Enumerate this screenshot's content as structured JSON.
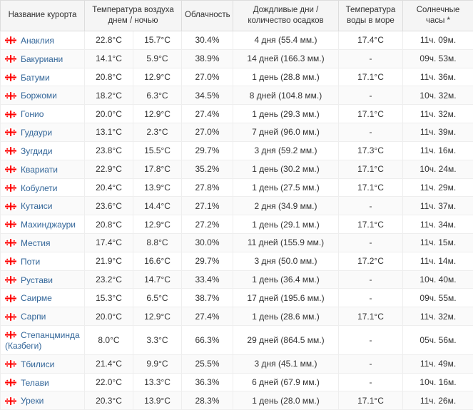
{
  "headers": {
    "name": "Название курорта",
    "temp": "Температура воздуха днем / ночью",
    "cloud": "Облачность",
    "rain": "Дождливые дни / количество осадков",
    "sea": "Температура воды в море",
    "sun": "Солнечные часы *"
  },
  "flag": {
    "bg": "#ffffff",
    "cross": "#ff0000"
  },
  "link_color": "#336699",
  "rows": [
    {
      "name": "Анаклия",
      "day": "22.8°C",
      "night": "15.7°C",
      "cloud": "30.4%",
      "rain": "4 дня (55.4 мм.)",
      "sea": "17.4°C",
      "sun": "11ч. 09м."
    },
    {
      "name": "Бакуриани",
      "day": "14.1°C",
      "night": "5.9°C",
      "cloud": "38.9%",
      "rain": "14 дней (166.3 мм.)",
      "sea": "-",
      "sun": "09ч. 53м."
    },
    {
      "name": "Батуми",
      "day": "20.8°C",
      "night": "12.9°C",
      "cloud": "27.0%",
      "rain": "1 день (28.8 мм.)",
      "sea": "17.1°C",
      "sun": "11ч. 36м."
    },
    {
      "name": "Боржоми",
      "day": "18.2°C",
      "night": "6.3°C",
      "cloud": "34.5%",
      "rain": "8 дней (104.8 мм.)",
      "sea": "-",
      "sun": "10ч. 32м."
    },
    {
      "name": "Гонио",
      "day": "20.0°C",
      "night": "12.9°C",
      "cloud": "27.4%",
      "rain": "1 день (29.3 мм.)",
      "sea": "17.1°C",
      "sun": "11ч. 32м."
    },
    {
      "name": "Гудаури",
      "day": "13.1°C",
      "night": "2.3°C",
      "cloud": "27.0%",
      "rain": "7 дней (96.0 мм.)",
      "sea": "-",
      "sun": "11ч. 39м."
    },
    {
      "name": "Зугдиди",
      "day": "23.8°C",
      "night": "15.5°C",
      "cloud": "29.7%",
      "rain": "3 дня (59.2 мм.)",
      "sea": "17.3°C",
      "sun": "11ч. 16м."
    },
    {
      "name": "Квариати",
      "day": "22.9°C",
      "night": "17.8°C",
      "cloud": "35.2%",
      "rain": "1 день (30.2 мм.)",
      "sea": "17.1°C",
      "sun": "10ч. 24м."
    },
    {
      "name": "Кобулети",
      "day": "20.4°C",
      "night": "13.9°C",
      "cloud": "27.8%",
      "rain": "1 день (27.5 мм.)",
      "sea": "17.1°C",
      "sun": "11ч. 29м."
    },
    {
      "name": "Кутаиси",
      "day": "23.6°C",
      "night": "14.4°C",
      "cloud": "27.1%",
      "rain": "2 дня (34.9 мм.)",
      "sea": "-",
      "sun": "11ч. 37м."
    },
    {
      "name": "Махинджаури",
      "day": "20.8°C",
      "night": "12.9°C",
      "cloud": "27.2%",
      "rain": "1 день (29.1 мм.)",
      "sea": "17.1°C",
      "sun": "11ч. 34м."
    },
    {
      "name": "Местия",
      "day": "17.4°C",
      "night": "8.8°C",
      "cloud": "30.0%",
      "rain": "11 дней (155.9 мм.)",
      "sea": "-",
      "sun": "11ч. 15м."
    },
    {
      "name": "Поти",
      "day": "21.9°C",
      "night": "16.6°C",
      "cloud": "29.7%",
      "rain": "3 дня (50.0 мм.)",
      "sea": "17.2°C",
      "sun": "11ч. 14м."
    },
    {
      "name": "Рустави",
      "day": "23.2°C",
      "night": "14.7°C",
      "cloud": "33.4%",
      "rain": "1 день (36.4 мм.)",
      "sea": "-",
      "sun": "10ч. 40м."
    },
    {
      "name": "Саирме",
      "day": "15.3°C",
      "night": "6.5°C",
      "cloud": "38.7%",
      "rain": "17 дней (195.6 мм.)",
      "sea": "-",
      "sun": "09ч. 55м."
    },
    {
      "name": "Сарпи",
      "day": "20.0°C",
      "night": "12.9°C",
      "cloud": "27.4%",
      "rain": "1 день (28.6 мм.)",
      "sea": "17.1°C",
      "sun": "11ч. 32м."
    },
    {
      "name": "Степанцминда (Казбеги)",
      "day": "8.0°C",
      "night": "3.3°C",
      "cloud": "66.3%",
      "rain": "29 дней (864.5 мм.)",
      "sea": "-",
      "sun": "05ч. 56м."
    },
    {
      "name": "Тбилиси",
      "day": "21.4°C",
      "night": "9.9°C",
      "cloud": "25.5%",
      "rain": "3 дня (45.1 мм.)",
      "sea": "-",
      "sun": "11ч. 49м."
    },
    {
      "name": "Телави",
      "day": "22.0°C",
      "night": "13.3°C",
      "cloud": "36.3%",
      "rain": "6 дней (67.9 мм.)",
      "sea": "-",
      "sun": "10ч. 16м."
    },
    {
      "name": "Уреки",
      "day": "20.3°C",
      "night": "13.9°C",
      "cloud": "28.3%",
      "rain": "1 день (28.0 мм.)",
      "sea": "17.1°C",
      "sun": "11ч. 26м."
    }
  ]
}
